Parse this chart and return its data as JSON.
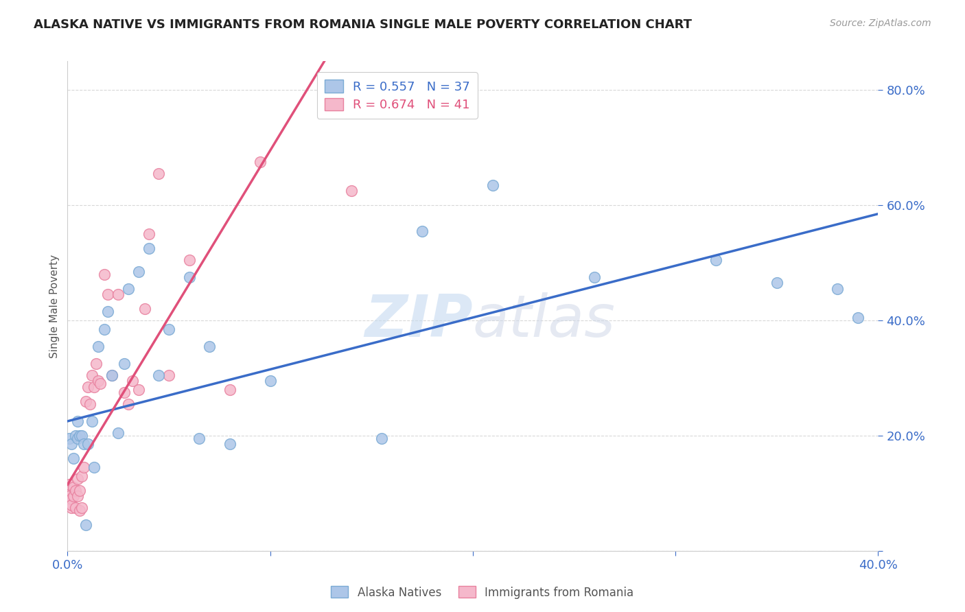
{
  "title": "ALASKA NATIVE VS IMMIGRANTS FROM ROMANIA SINGLE MALE POVERTY CORRELATION CHART",
  "source": "Source: ZipAtlas.com",
  "ylabel": "Single Male Poverty",
  "xlim": [
    0.0,
    0.4
  ],
  "ylim": [
    0.0,
    0.85
  ],
  "alaska_color": "#adc6e8",
  "alaska_edge": "#7aaad4",
  "romania_color": "#f5b8cb",
  "romania_edge": "#e8809e",
  "line_alaska_color": "#3a6cc8",
  "line_romania_color": "#e0507a",
  "watermark": "ZIPatlas",
  "alaska_x": [
    0.001,
    0.002,
    0.003,
    0.004,
    0.005,
    0.005,
    0.006,
    0.007,
    0.008,
    0.009,
    0.01,
    0.012,
    0.013,
    0.015,
    0.018,
    0.02,
    0.022,
    0.025,
    0.028,
    0.03,
    0.035,
    0.04,
    0.045,
    0.05,
    0.06,
    0.065,
    0.07,
    0.08,
    0.1,
    0.155,
    0.175,
    0.21,
    0.26,
    0.32,
    0.35,
    0.38,
    0.39
  ],
  "alaska_y": [
    0.195,
    0.185,
    0.16,
    0.2,
    0.195,
    0.225,
    0.2,
    0.2,
    0.185,
    0.045,
    0.185,
    0.225,
    0.145,
    0.355,
    0.385,
    0.415,
    0.305,
    0.205,
    0.325,
    0.455,
    0.485,
    0.525,
    0.305,
    0.385,
    0.475,
    0.195,
    0.355,
    0.185,
    0.295,
    0.195,
    0.555,
    0.635,
    0.475,
    0.505,
    0.465,
    0.455,
    0.405
  ],
  "romania_x": [
    0.001,
    0.001,
    0.001,
    0.002,
    0.002,
    0.002,
    0.003,
    0.003,
    0.004,
    0.004,
    0.005,
    0.005,
    0.006,
    0.006,
    0.007,
    0.007,
    0.008,
    0.009,
    0.01,
    0.011,
    0.012,
    0.013,
    0.014,
    0.015,
    0.016,
    0.018,
    0.02,
    0.022,
    0.025,
    0.028,
    0.03,
    0.032,
    0.035,
    0.038,
    0.04,
    0.045,
    0.05,
    0.06,
    0.08,
    0.095,
    0.14
  ],
  "romania_y": [
    0.105,
    0.095,
    0.115,
    0.075,
    0.09,
    0.08,
    0.11,
    0.095,
    0.075,
    0.105,
    0.095,
    0.125,
    0.07,
    0.105,
    0.13,
    0.075,
    0.145,
    0.26,
    0.285,
    0.255,
    0.305,
    0.285,
    0.325,
    0.295,
    0.29,
    0.48,
    0.445,
    0.305,
    0.445,
    0.275,
    0.255,
    0.295,
    0.28,
    0.42,
    0.55,
    0.655,
    0.305,
    0.505,
    0.28,
    0.675,
    0.625
  ],
  "alaska_reg_slope": 0.9,
  "alaska_reg_intercept": 0.225,
  "romania_reg_slope": 5.8,
  "romania_reg_intercept": 0.115,
  "romania_line_x_end": 0.135
}
